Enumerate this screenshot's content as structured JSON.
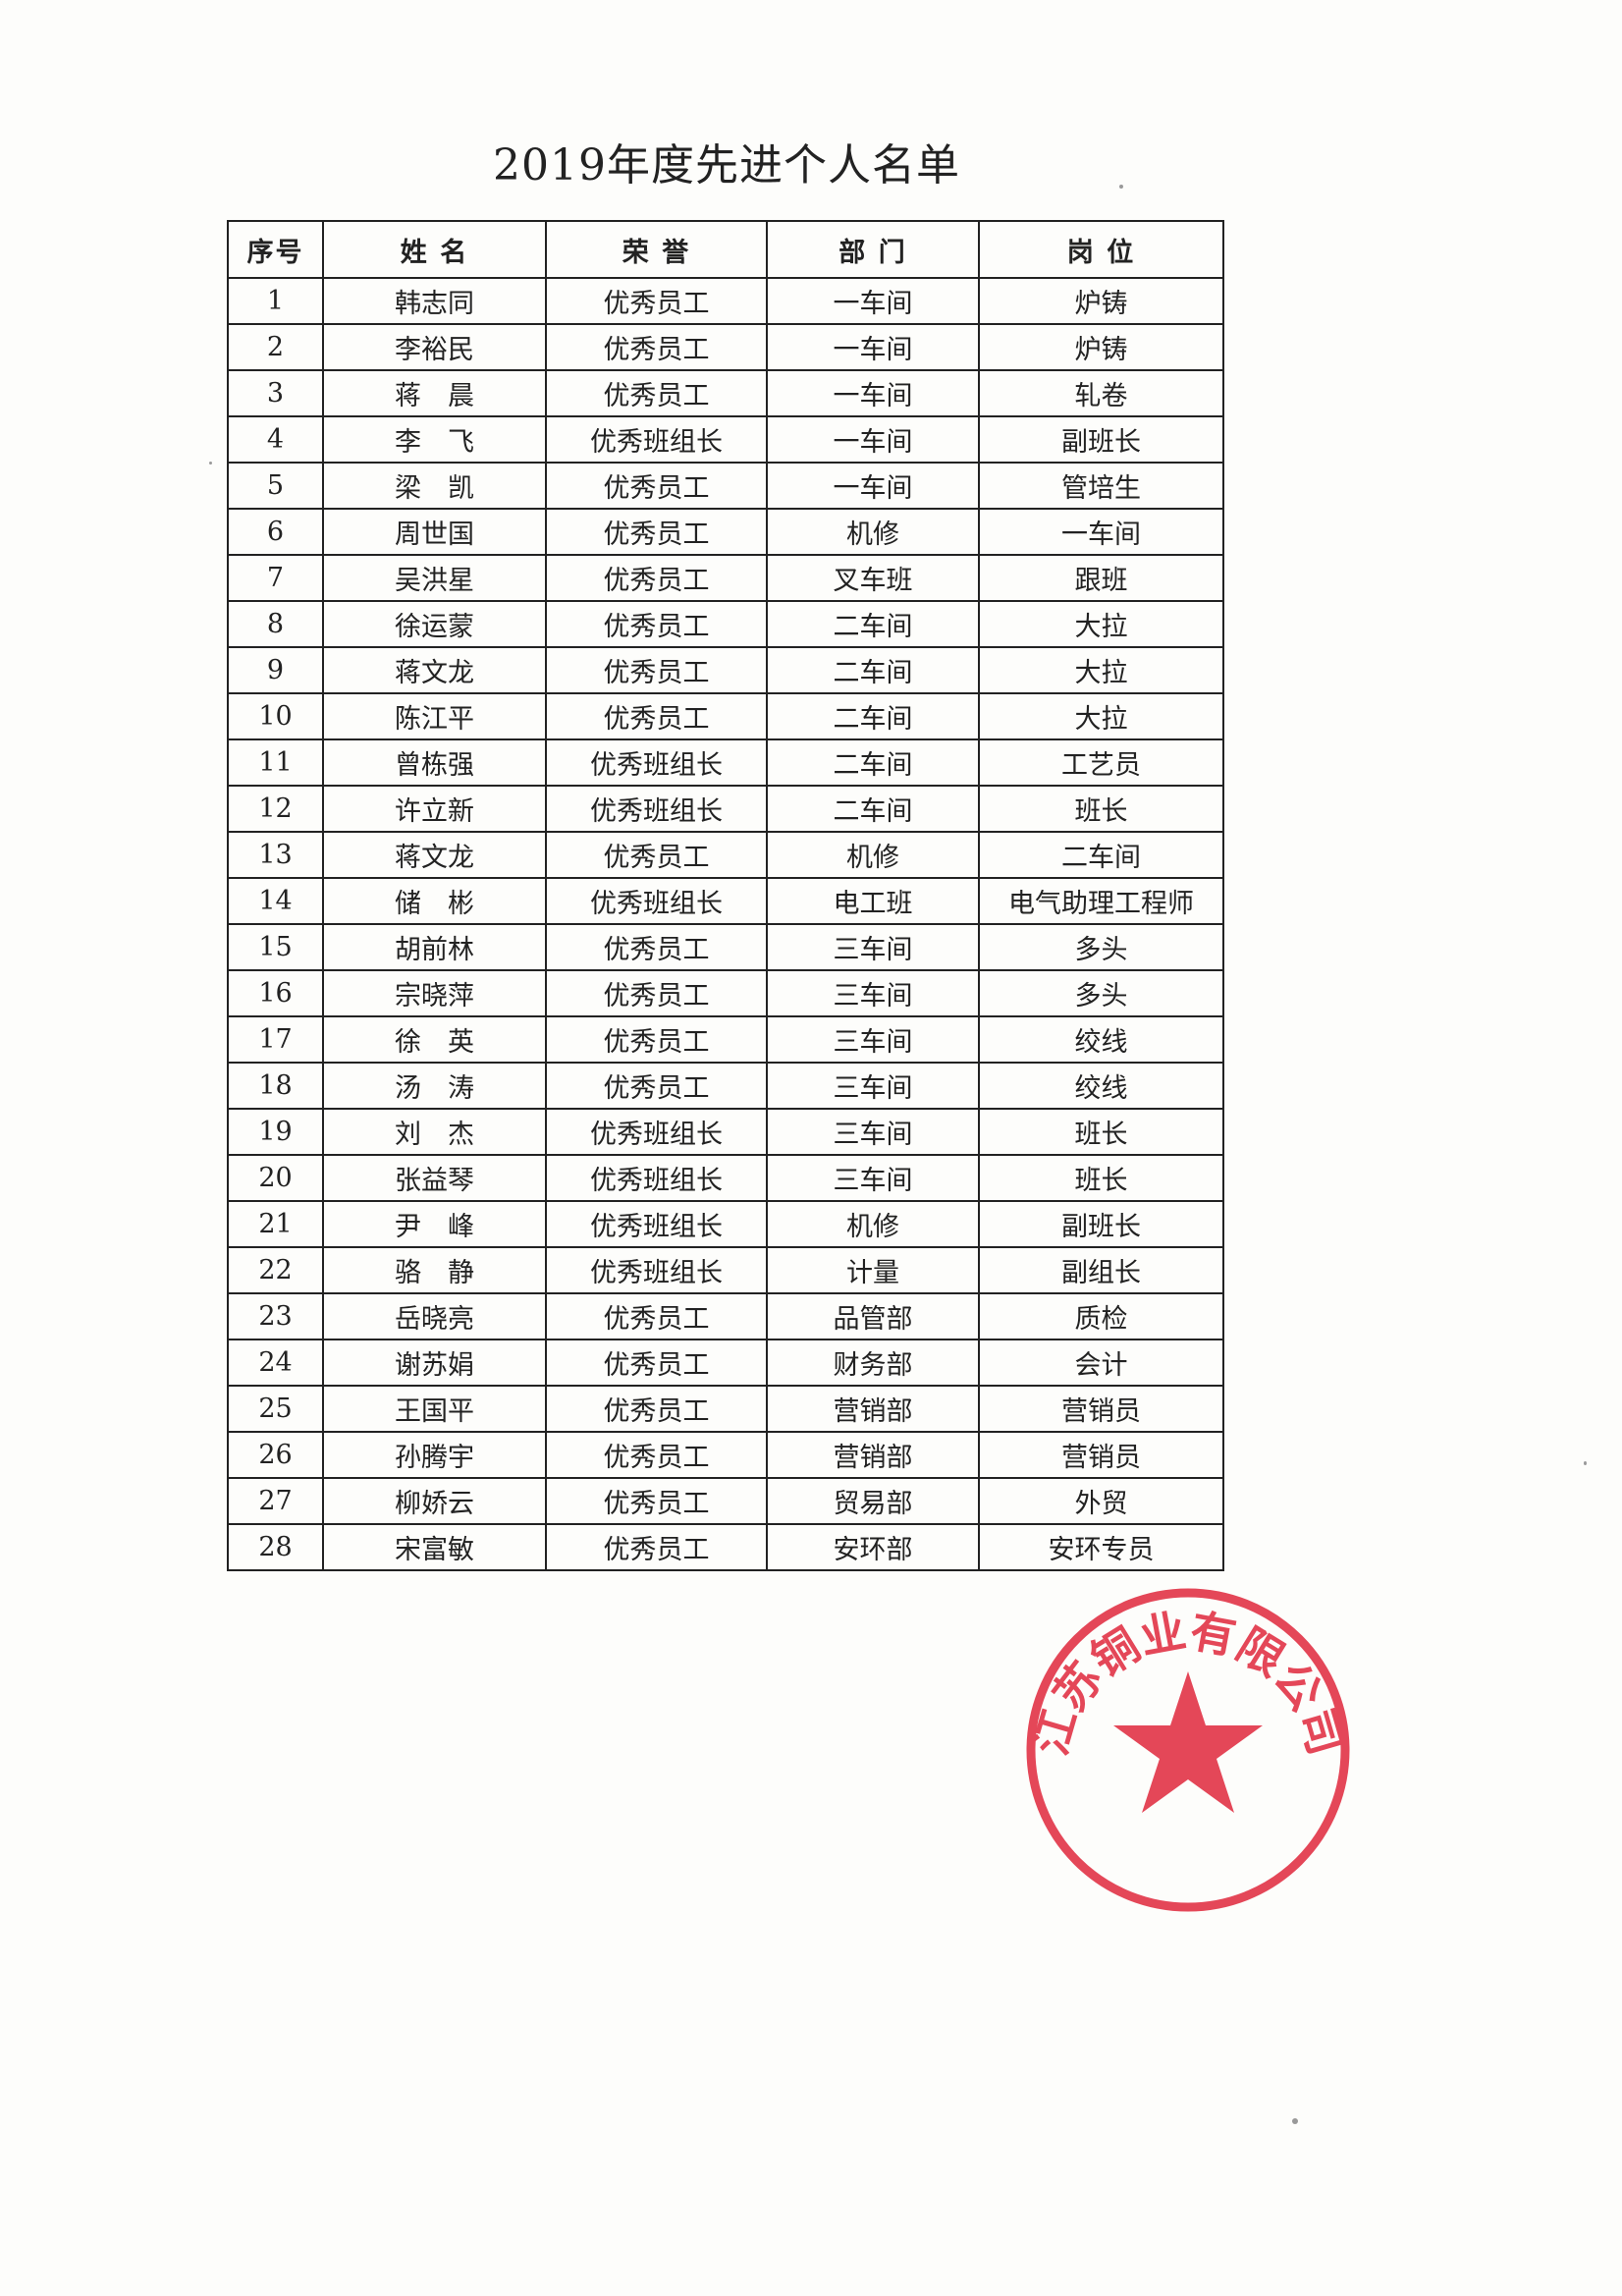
{
  "document": {
    "title": "2019年度先进个人名单",
    "table": {
      "headers": [
        "序号",
        "姓 名",
        "荣 誉",
        "部 门",
        "岗 位"
      ],
      "rows": [
        [
          "1",
          "韩志同",
          "优秀员工",
          "一车间",
          "炉铸"
        ],
        [
          "2",
          "李裕民",
          "优秀员工",
          "一车间",
          "炉铸"
        ],
        [
          "3",
          "蒋　晨",
          "优秀员工",
          "一车间",
          "轧卷"
        ],
        [
          "4",
          "李　飞",
          "优秀班组长",
          "一车间",
          "副班长"
        ],
        [
          "5",
          "梁　凯",
          "优秀员工",
          "一车间",
          "管培生"
        ],
        [
          "6",
          "周世国",
          "优秀员工",
          "机修",
          "一车间"
        ],
        [
          "7",
          "吴洪星",
          "优秀员工",
          "叉车班",
          "跟班"
        ],
        [
          "8",
          "徐运蒙",
          "优秀员工",
          "二车间",
          "大拉"
        ],
        [
          "9",
          "蒋文龙",
          "优秀员工",
          "二车间",
          "大拉"
        ],
        [
          "10",
          "陈江平",
          "优秀员工",
          "二车间",
          "大拉"
        ],
        [
          "11",
          "曾栋强",
          "优秀班组长",
          "二车间",
          "工艺员"
        ],
        [
          "12",
          "许立新",
          "优秀班组长",
          "二车间",
          "班长"
        ],
        [
          "13",
          "蒋文龙",
          "优秀员工",
          "机修",
          "二车间"
        ],
        [
          "14",
          "储　彬",
          "优秀班组长",
          "电工班",
          "电气助理工程师"
        ],
        [
          "15",
          "胡前林",
          "优秀员工",
          "三车间",
          "多头"
        ],
        [
          "16",
          "宗晓萍",
          "优秀员工",
          "三车间",
          "多头"
        ],
        [
          "17",
          "徐　英",
          "优秀员工",
          "三车间",
          "绞线"
        ],
        [
          "18",
          "汤　涛",
          "优秀员工",
          "三车间",
          "绞线"
        ],
        [
          "19",
          "刘　杰",
          "优秀班组长",
          "三车间",
          "班长"
        ],
        [
          "20",
          "张益琴",
          "优秀班组长",
          "三车间",
          "班长"
        ],
        [
          "21",
          "尹　峰",
          "优秀班组长",
          "机修",
          "副班长"
        ],
        [
          "22",
          "骆　静",
          "优秀班组长",
          "计量",
          "副组长"
        ],
        [
          "23",
          "岳晓亮",
          "优秀员工",
          "品管部",
          "质检"
        ],
        [
          "24",
          "谢苏娟",
          "优秀员工",
          "财务部",
          "会计"
        ],
        [
          "25",
          "王国平",
          "优秀员工",
          "营销部",
          "营销员"
        ],
        [
          "26",
          "孙腾宇",
          "优秀员工",
          "营销部",
          "营销员"
        ],
        [
          "27",
          "柳娇云",
          "优秀员工",
          "贸易部",
          "外贸"
        ],
        [
          "28",
          "宋富敏",
          "优秀员工",
          "安环部",
          "安环专员"
        ]
      ]
    },
    "stamp": {
      "text": "江苏铜业有限公司",
      "color": "#e0283c"
    }
  }
}
